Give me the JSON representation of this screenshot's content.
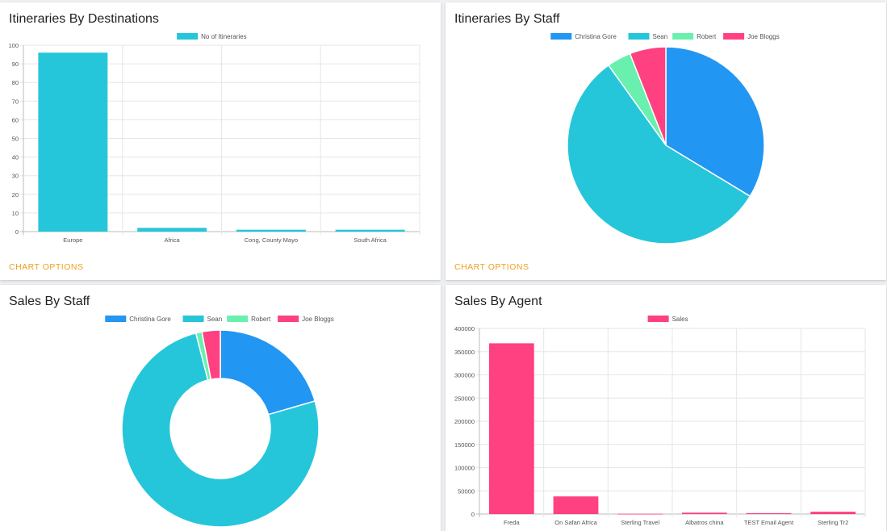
{
  "colors": {
    "blue": "#2196f3",
    "cyan": "#26c6da",
    "green": "#69f0ae",
    "pink": "#ff4081",
    "chart_options": "#f0a020"
  },
  "panels": {
    "destinations": {
      "title": "Itineraries By Destinations",
      "options_label": "CHART OPTIONS"
    },
    "itin_staff": {
      "title": "Itineraries By Staff",
      "options_label": "CHART OPTIONS"
    },
    "sales_staff": {
      "title": "Sales By Staff"
    },
    "sales_agent": {
      "title": "Sales By Agent"
    }
  },
  "chart_data": [
    {
      "id": "itineraries-by-destinations",
      "type": "bar",
      "title": "Itineraries By Destinations",
      "categories": [
        "Europe",
        "Africa",
        "Cong, County Mayo",
        "South Africa"
      ],
      "series": [
        {
          "name": "No of Itineraries",
          "values": [
            96,
            2,
            1,
            1
          ],
          "color": "#26c6da"
        }
      ],
      "ylim": [
        0,
        100
      ],
      "yticks": [
        0,
        10,
        20,
        30,
        40,
        50,
        60,
        70,
        80,
        90,
        100
      ],
      "grid": true,
      "legend": "top-center"
    },
    {
      "id": "itineraries-by-staff",
      "type": "pie",
      "title": "Itineraries By Staff",
      "labels": [
        "Christina Gore",
        "Sean",
        "Robert",
        "Joe Bloggs"
      ],
      "values": [
        34,
        57,
        4,
        6
      ],
      "colors": [
        "#2196f3",
        "#26c6da",
        "#69f0ae",
        "#ff4081"
      ],
      "legend": "top-center"
    },
    {
      "id": "sales-by-staff",
      "type": "pie",
      "donut": true,
      "title": "Sales By Staff",
      "labels": [
        "Christina Gore",
        "Sean",
        "Robert",
        "Joe Bloggs"
      ],
      "values": [
        20.5,
        75.5,
        1,
        3
      ],
      "colors": [
        "#2196f3",
        "#26c6da",
        "#69f0ae",
        "#ff4081"
      ],
      "legend": "top-center"
    },
    {
      "id": "sales-by-agent",
      "type": "bar",
      "title": "Sales By Agent",
      "categories": [
        "Freda",
        "On Safari Africa",
        "Sterling Travel",
        "Albatros china",
        "TEST Email Agent",
        "Sterling Tr2"
      ],
      "series": [
        {
          "name": "Sales",
          "values": [
            368000,
            38000,
            500,
            3000,
            2000,
            5000
          ],
          "color": "#ff4081"
        }
      ],
      "ylim": [
        0,
        400000
      ],
      "yticks": [
        0,
        50000,
        100000,
        150000,
        200000,
        250000,
        300000,
        350000,
        400000
      ],
      "grid": true,
      "legend": "top-center"
    }
  ]
}
